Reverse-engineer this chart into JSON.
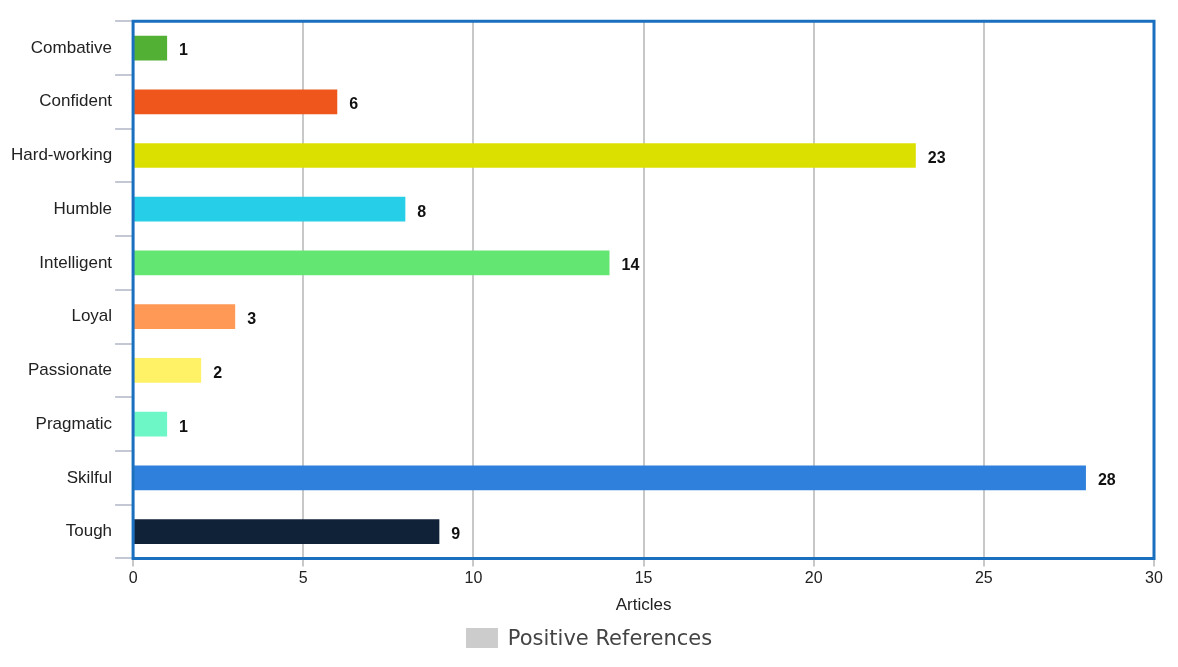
{
  "chart_data": {
    "type": "bar",
    "orientation": "horizontal",
    "xlabel": "Articles",
    "categories": [
      "Combative",
      "Confident",
      "Hard-working",
      "Humble",
      "Intelligent",
      "Loyal",
      "Passionate",
      "Pragmatic",
      "Skilful",
      "Tough"
    ],
    "series": [
      {
        "name": "Positive References",
        "color": "#cccccc",
        "values": [
          1,
          6,
          23,
          8,
          14,
          3,
          2,
          1,
          28,
          9
        ],
        "colors": [
          "#52b035",
          "#ee561c",
          "#dce000",
          "#26cee8",
          "#64e673",
          "#ff9955",
          "#fff266",
          "#6ef7c6",
          "#2f80dc",
          "#0f2238"
        ]
      }
    ],
    "xlim": [
      0,
      30
    ],
    "xticks": [
      0,
      5,
      10,
      15,
      20,
      25,
      30
    ],
    "grid": "x",
    "legend": "bottom",
    "data_labels": true
  }
}
